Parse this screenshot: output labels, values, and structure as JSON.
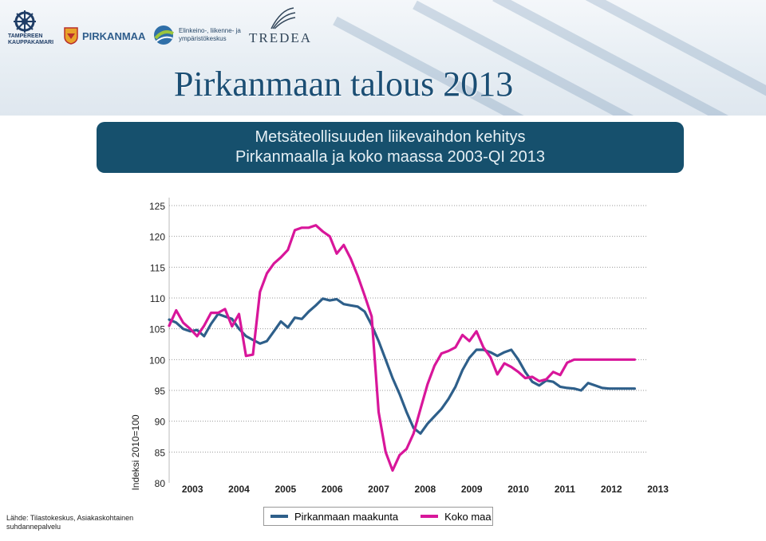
{
  "logos": {
    "chamber_line1": "TAMPEREEN",
    "chamber_line2": "KAUPPAKAMARI",
    "pirkanmaa": "PIRKANMAA",
    "ely_line1": "Elinkeino-, liikenne- ja",
    "ely_line2": "ympäristökeskus",
    "tredea": "TREDEA"
  },
  "main_title": "Pirkanmaan talous 2013",
  "subtitle": {
    "line1": "Metsäteollisuuden liikevaihdon kehitys",
    "line2": "Pirkanmaalla ja koko maassa 2003-QI 2013"
  },
  "source": "Lähde: Tilastokeskus, Asiakaskohtainen suhdannepalvelu",
  "chart_data": {
    "type": "line",
    "ylabel": "Indeksi 2010=100",
    "ylim": [
      80,
      125
    ],
    "yticks": [
      125,
      120,
      115,
      110,
      105,
      100,
      95,
      90,
      85,
      80
    ],
    "xticks": [
      "2003",
      "2004",
      "2005",
      "2006",
      "2007",
      "2008",
      "2009",
      "2010",
      "2011",
      "2012",
      "2013"
    ],
    "xlim": [
      2003.0,
      2013.25
    ],
    "grid": "horizontal dotted",
    "legend": "bottom",
    "series": [
      {
        "name": "Pirkanmaan maakunta",
        "color": "#2e5f8a",
        "x": [
          2003.0,
          2003.15,
          2003.3,
          2003.45,
          2003.6,
          2003.75,
          2003.9,
          2004.05,
          2004.2,
          2004.35,
          2004.5,
          2004.65,
          2004.8,
          2004.95,
          2005.1,
          2005.25,
          2005.4,
          2005.55,
          2005.7,
          2005.85,
          2006.0,
          2006.15,
          2006.3,
          2006.45,
          2006.6,
          2006.75,
          2006.9,
          2007.05,
          2007.2,
          2007.35,
          2007.5,
          2007.65,
          2007.8,
          2007.95,
          2008.1,
          2008.25,
          2008.4,
          2008.55,
          2008.7,
          2008.85,
          2009.0,
          2009.15,
          2009.3,
          2009.45,
          2009.6,
          2009.75,
          2009.9,
          2010.05,
          2010.2,
          2010.35,
          2010.5,
          2010.65,
          2010.8,
          2010.95,
          2011.1,
          2011.25,
          2011.4,
          2011.55,
          2011.7,
          2011.85,
          2012.0,
          2012.15,
          2012.3,
          2012.45,
          2012.6,
          2012.75,
          2012.9,
          2013.0
        ],
        "values": [
          106.5,
          106.0,
          105.0,
          104.6,
          104.8,
          103.8,
          105.8,
          107.4,
          107.0,
          106.6,
          105.0,
          103.8,
          103.2,
          102.6,
          103.0,
          104.6,
          106.2,
          105.2,
          106.8,
          106.6,
          107.8,
          108.8,
          109.9,
          109.6,
          109.8,
          109.0,
          108.8,
          108.6,
          107.8,
          105.6,
          103.0,
          100.0,
          97.0,
          94.4,
          91.5,
          88.9,
          88.0,
          89.6,
          90.8,
          92.0,
          93.6,
          95.6,
          98.3,
          100.3,
          101.6,
          101.6,
          101.2,
          100.6,
          101.2,
          101.6,
          100.0,
          98.0,
          96.4,
          95.8,
          96.6,
          96.4,
          95.6,
          95.4,
          95.3,
          95.0,
          96.2,
          95.8,
          95.4,
          95.3,
          95.3,
          95.3,
          95.3,
          95.3
        ]
      },
      {
        "name": "Koko maa",
        "color": "#d8169a",
        "x": [
          2003.0,
          2003.15,
          2003.3,
          2003.45,
          2003.6,
          2003.75,
          2003.9,
          2004.05,
          2004.2,
          2004.35,
          2004.5,
          2004.65,
          2004.8,
          2004.95,
          2005.1,
          2005.25,
          2005.4,
          2005.55,
          2005.7,
          2005.85,
          2006.0,
          2006.15,
          2006.3,
          2006.45,
          2006.6,
          2006.75,
          2006.9,
          2007.05,
          2007.2,
          2007.35,
          2007.5,
          2007.65,
          2007.8,
          2007.95,
          2008.1,
          2008.25,
          2008.4,
          2008.55,
          2008.7,
          2008.85,
          2009.0,
          2009.15,
          2009.3,
          2009.45,
          2009.6,
          2009.75,
          2009.9,
          2010.05,
          2010.2,
          2010.35,
          2010.5,
          2010.65,
          2010.8,
          2010.95,
          2011.1,
          2011.25,
          2011.4,
          2011.55,
          2011.7,
          2011.85,
          2012.0,
          2012.15,
          2012.3,
          2012.45,
          2012.6,
          2012.75,
          2012.9,
          2013.0
        ],
        "values": [
          105.5,
          108.0,
          106.0,
          105.0,
          103.8,
          105.5,
          107.6,
          107.6,
          108.2,
          105.4,
          107.4,
          100.6,
          100.8,
          111.0,
          114.0,
          115.6,
          116.6,
          117.8,
          121.0,
          121.4,
          121.4,
          121.8,
          120.8,
          120.0,
          117.2,
          118.6,
          116.4,
          113.6,
          110.4,
          107.0,
          91.5,
          85.0,
          82.0,
          84.5,
          85.5,
          88.0,
          92.0,
          96.0,
          99.0,
          101.0,
          101.4,
          102.0,
          104.0,
          103.0,
          104.6,
          102.0,
          100.4,
          97.6,
          99.4,
          98.8,
          98.0,
          97.0,
          97.2,
          96.5,
          96.8,
          98.0,
          97.5,
          99.5,
          100.0,
          100.0,
          100.0,
          100.0,
          100.0,
          100.0,
          100.0,
          100.0,
          100.0,
          100.0
        ]
      }
    ]
  }
}
